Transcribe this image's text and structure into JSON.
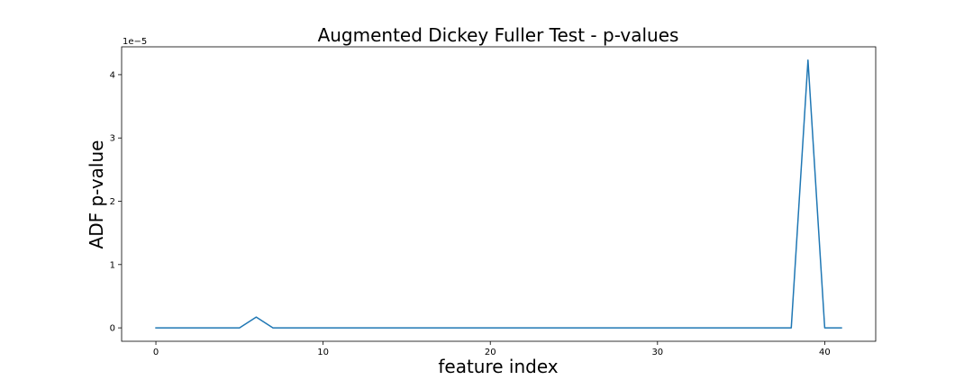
{
  "chart_data": {
    "type": "line",
    "title": "Augmented Dickey Fuller Test - p-values",
    "xlabel": "feature index",
    "ylabel": "ADF p-value",
    "y_offset_label": "1e−5",
    "xlim": [
      -2.05,
      43.05
    ],
    "ylim": [
      -0.212,
      4.44
    ],
    "x_ticks": [
      0,
      10,
      20,
      30,
      40
    ],
    "y_ticks": [
      0,
      1,
      2,
      3,
      4
    ],
    "grid": false,
    "legend": "none",
    "series": [
      {
        "color": "#1f77b4",
        "x": [
          0,
          1,
          2,
          3,
          4,
          5,
          6,
          7,
          8,
          9,
          10,
          11,
          12,
          13,
          14,
          15,
          16,
          17,
          18,
          19,
          20,
          21,
          22,
          23,
          24,
          25,
          26,
          27,
          28,
          29,
          30,
          31,
          32,
          33,
          34,
          35,
          36,
          37,
          38,
          39,
          40,
          41
        ],
        "values": [
          0,
          0,
          0,
          0,
          0,
          0,
          0.17,
          0,
          0,
          0,
          0,
          0,
          0,
          0,
          0,
          0,
          0,
          0,
          0,
          0,
          0,
          0,
          0,
          0,
          0,
          0,
          0,
          0,
          0,
          0,
          0,
          0,
          0,
          0,
          0,
          0,
          0,
          0,
          0,
          4.23,
          0,
          0
        ]
      }
    ]
  }
}
